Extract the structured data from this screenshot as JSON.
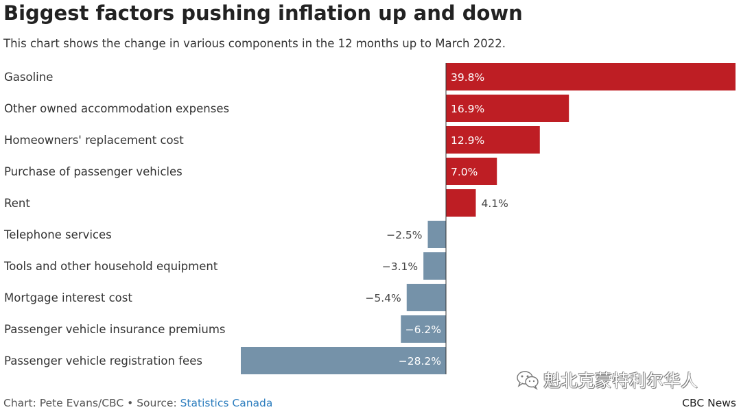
{
  "title": "Biggest factors pushing inflation up and down",
  "subtitle": "This chart shows the change in various components in the 12 months up to March 2022.",
  "colors": {
    "positive": "#be1e24",
    "negative": "#7592a9"
  },
  "chart_data": {
    "type": "bar",
    "orientation": "horizontal",
    "categories": [
      "Gasoline",
      "Other owned accommodation expenses",
      "Homeowners' replacement cost",
      "Purchase of passenger vehicles",
      "Rent",
      "Telephone services",
      "Tools and other household equipment",
      "Mortgage interest cost",
      "Passenger vehicle insurance premiums",
      "Passenger vehicle registration fees"
    ],
    "values": [
      39.8,
      16.9,
      12.9,
      7.0,
      4.1,
      -2.5,
      -3.1,
      -5.4,
      -6.2,
      -28.2
    ],
    "value_labels": [
      "39.8%",
      "16.9%",
      "12.9%",
      "7.0%",
      "4.1%",
      "−2.5%",
      "−3.1%",
      "−5.4%",
      "−6.2%",
      "−28.2%"
    ],
    "xlim": [
      -28.2,
      39.8
    ],
    "grid": false,
    "legend": "none"
  },
  "footer": {
    "credit": "Chart: Pete Evans/CBC • Source: ",
    "source_link": "Statistics Canada",
    "brand": "CBC News"
  },
  "watermark": {
    "text": "魁北克蒙特利尔华人",
    "icon": "wechat-icon"
  }
}
